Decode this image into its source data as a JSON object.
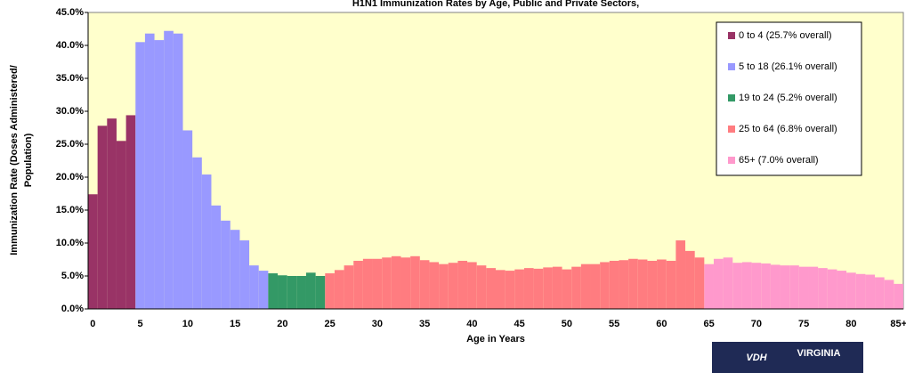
{
  "chart_data": {
    "type": "bar",
    "title": "H1N1 Immunization Rates by Age, Public and Private Sectors,",
    "y_label": [
      "Immunization Rate (Doses Administered/",
      "Population)"
    ],
    "x_label": "Age in Years",
    "categories": [
      "0",
      null,
      null,
      null,
      null,
      "5",
      null,
      null,
      null,
      null,
      "10",
      null,
      null,
      null,
      null,
      "15",
      null,
      null,
      null,
      null,
      "20",
      null,
      null,
      null,
      null,
      "25",
      null,
      null,
      null,
      null,
      "30",
      null,
      null,
      null,
      null,
      "35",
      null,
      null,
      null,
      null,
      "40",
      null,
      null,
      null,
      null,
      "45",
      null,
      null,
      null,
      null,
      "50",
      null,
      null,
      null,
      null,
      "55",
      null,
      null,
      null,
      null,
      "60",
      null,
      null,
      null,
      null,
      "65",
      null,
      null,
      null,
      null,
      "70",
      null,
      null,
      null,
      null,
      "75",
      null,
      null,
      null,
      null,
      "80",
      null,
      null,
      null,
      null,
      "85+"
    ],
    "values": [
      17.4,
      27.8,
      28.9,
      25.5,
      29.4,
      40.5,
      41.8,
      40.8,
      42.2,
      41.8,
      27.1,
      23.0,
      20.4,
      15.7,
      13.4,
      12.0,
      10.4,
      6.6,
      5.8,
      5.4,
      5.1,
      5.0,
      5.0,
      5.5,
      5.0,
      5.4,
      5.9,
      6.6,
      7.3,
      7.6,
      7.6,
      7.8,
      8.0,
      7.8,
      8.0,
      7.4,
      7.1,
      6.8,
      7.0,
      7.3,
      7.1,
      6.6,
      6.2,
      5.9,
      5.8,
      6.0,
      6.2,
      6.1,
      6.3,
      6.4,
      6.0,
      6.4,
      6.8,
      6.8,
      7.1,
      7.3,
      7.4,
      7.6,
      7.5,
      7.3,
      7.5,
      7.3,
      10.4,
      8.8,
      7.8,
      6.8,
      7.6,
      7.8,
      7.0,
      7.1,
      7.0,
      6.9,
      6.7,
      6.6,
      6.6,
      6.4,
      6.4,
      6.2,
      6.0,
      5.8,
      5.5,
      5.3,
      5.2,
      4.8,
      4.4,
      3.8
    ],
    "bar_colors": [
      "#993366",
      "#993366",
      "#993366",
      "#993366",
      "#993366",
      "#9999ff",
      "#9999ff",
      "#9999ff",
      "#9999ff",
      "#9999ff",
      "#9999ff",
      "#9999ff",
      "#9999ff",
      "#9999ff",
      "#9999ff",
      "#9999ff",
      "#9999ff",
      "#9999ff",
      "#9999ff",
      "#339966",
      "#339966",
      "#339966",
      "#339966",
      "#339966",
      "#339966",
      "#ff7c80",
      "#ff7c80",
      "#ff7c80",
      "#ff7c80",
      "#ff7c80",
      "#ff7c80",
      "#ff7c80",
      "#ff7c80",
      "#ff7c80",
      "#ff7c80",
      "#ff7c80",
      "#ff7c80",
      "#ff7c80",
      "#ff7c80",
      "#ff7c80",
      "#ff7c80",
      "#ff7c80",
      "#ff7c80",
      "#ff7c80",
      "#ff7c80",
      "#ff7c80",
      "#ff7c80",
      "#ff7c80",
      "#ff7c80",
      "#ff7c80",
      "#ff7c80",
      "#ff7c80",
      "#ff7c80",
      "#ff7c80",
      "#ff7c80",
      "#ff7c80",
      "#ff7c80",
      "#ff7c80",
      "#ff7c80",
      "#ff7c80",
      "#ff7c80",
      "#ff7c80",
      "#ff7c80",
      "#ff7c80",
      "#ff7c80",
      "#ff99cc",
      "#ff99cc",
      "#ff99cc",
      "#ff99cc",
      "#ff99cc",
      "#ff99cc",
      "#ff99cc",
      "#ff99cc",
      "#ff99cc",
      "#ff99cc",
      "#ff99cc",
      "#ff99cc",
      "#ff99cc",
      "#ff99cc",
      "#ff99cc",
      "#ff99cc",
      "#ff99cc",
      "#ff99cc",
      "#ff99cc",
      "#ff99cc",
      "#ff99cc"
    ],
    "legend": [
      {
        "name": "0 to 4 (25.7% overall)",
        "color": "#993366"
      },
      {
        "name": "5 to 18 (26.1% overall)",
        "color": "#9999ff"
      },
      {
        "name": "19 to 24 (5.2% overall)",
        "color": "#339966"
      },
      {
        "name": "25 to 64 (6.8% overall)",
        "color": "#ff7c80"
      },
      {
        "name": "65+ (7.0% overall)",
        "color": "#ff99cc"
      }
    ],
    "ylim": [
      0,
      45
    ],
    "yticks": [
      {
        "value": 0,
        "label": "0.0%"
      },
      {
        "value": 5,
        "label": "5.0%"
      },
      {
        "value": 10,
        "label": "10.0%"
      },
      {
        "value": 15,
        "label": "15.0%"
      },
      {
        "value": 20,
        "label": "20.0%"
      },
      {
        "value": 25,
        "label": "25.0%"
      },
      {
        "value": 30,
        "label": "30.0%"
      },
      {
        "value": 35,
        "label": "35.0%"
      },
      {
        "value": 40,
        "label": "40.0%"
      },
      {
        "value": 45,
        "label": "45.0%"
      }
    ],
    "logo": "VDH",
    "logo_sub": "VIRGINIA"
  }
}
